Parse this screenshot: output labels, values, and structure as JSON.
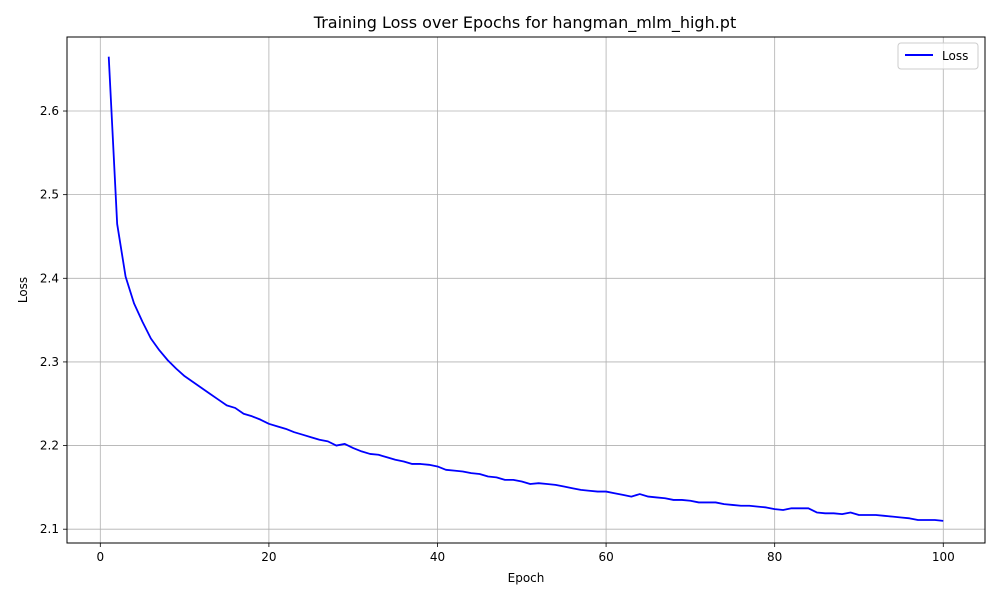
{
  "chart_data": {
    "type": "line",
    "title": "Training Loss over Epochs for hangman_mlm_high.pt",
    "xlabel": "Epoch",
    "ylabel": "Loss",
    "xlim": [
      -3.95,
      104.95
    ],
    "ylim": [
      2.0835,
      2.6885
    ],
    "xticks": [
      0,
      20,
      40,
      60,
      80,
      100
    ],
    "yticks": [
      2.1,
      2.2,
      2.3,
      2.4,
      2.5,
      2.6
    ],
    "xtick_labels": [
      "0",
      "20",
      "40",
      "60",
      "80",
      "100"
    ],
    "ytick_labels": [
      "2.1",
      "2.2",
      "2.3",
      "2.4",
      "2.5",
      "2.6"
    ],
    "grid": true,
    "legend": "top-right",
    "series": [
      {
        "name": "Loss",
        "color": "#0000ff",
        "x": [
          1,
          2,
          3,
          4,
          5,
          6,
          7,
          8,
          9,
          10,
          11,
          12,
          13,
          14,
          15,
          16,
          17,
          18,
          19,
          20,
          21,
          22,
          23,
          24,
          25,
          26,
          27,
          28,
          29,
          30,
          31,
          32,
          33,
          34,
          35,
          36,
          37,
          38,
          39,
          40,
          41,
          42,
          43,
          44,
          45,
          46,
          47,
          48,
          49,
          50,
          51,
          52,
          53,
          54,
          55,
          56,
          57,
          58,
          59,
          60,
          61,
          62,
          63,
          64,
          65,
          66,
          67,
          68,
          69,
          70,
          71,
          72,
          73,
          74,
          75,
          76,
          77,
          78,
          79,
          80,
          81,
          82,
          83,
          84,
          85,
          86,
          87,
          88,
          89,
          90,
          91,
          92,
          93,
          94,
          95,
          96,
          97,
          98,
          99,
          100
        ],
        "values": [
          2.665,
          2.465,
          2.402,
          2.37,
          2.348,
          2.328,
          2.314,
          2.302,
          2.292,
          2.283,
          2.276,
          2.269,
          2.262,
          2.255,
          2.248,
          2.245,
          2.238,
          2.235,
          2.231,
          2.226,
          2.223,
          2.22,
          2.216,
          2.213,
          2.21,
          2.207,
          2.205,
          2.2,
          2.202,
          2.197,
          2.193,
          2.19,
          2.189,
          2.186,
          2.183,
          2.181,
          2.178,
          2.178,
          2.177,
          2.175,
          2.171,
          2.17,
          2.169,
          2.167,
          2.166,
          2.163,
          2.162,
          2.159,
          2.159,
          2.157,
          2.154,
          2.155,
          2.154,
          2.153,
          2.151,
          2.149,
          2.147,
          2.146,
          2.145,
          2.145,
          2.143,
          2.141,
          2.139,
          2.142,
          2.139,
          2.138,
          2.137,
          2.135,
          2.135,
          2.134,
          2.132,
          2.132,
          2.132,
          2.13,
          2.129,
          2.128,
          2.128,
          2.127,
          2.126,
          2.124,
          2.123,
          2.125,
          2.125,
          2.125,
          2.12,
          2.119,
          2.119,
          2.118,
          2.12,
          2.117,
          2.117,
          2.117,
          2.116,
          2.115,
          2.114,
          2.113,
          2.111,
          2.111,
          2.111,
          2.11
        ]
      }
    ]
  }
}
